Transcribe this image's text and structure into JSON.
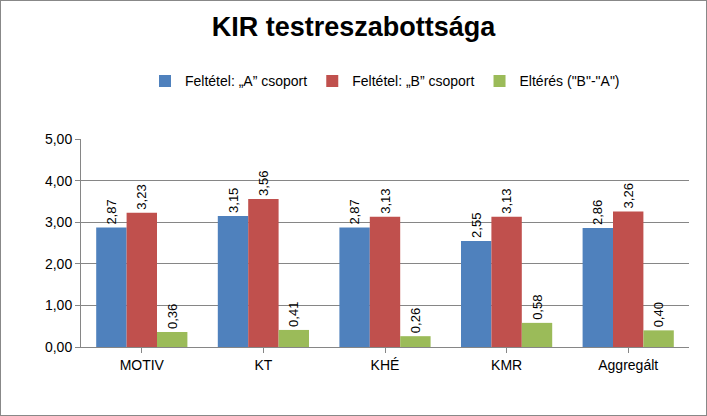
{
  "chart_data": {
    "type": "bar",
    "title": "KIR testreszabottsága",
    "categories": [
      "MOTIV",
      "KT",
      "KHÉ",
      "KMR",
      "Aggregált"
    ],
    "series": [
      {
        "name": "Feltétel: „A” csoport",
        "color": "#4f81bd",
        "values": [
          2.87,
          3.15,
          2.87,
          2.55,
          2.86
        ],
        "value_labels": [
          "2,87",
          "3,15",
          "2,87",
          "2,55",
          "2,86"
        ]
      },
      {
        "name": "Feltétel: „B” csoport",
        "color": "#c0504d",
        "values": [
          3.23,
          3.56,
          3.13,
          3.13,
          3.26
        ],
        "value_labels": [
          "3,23",
          "3,56",
          "3,13",
          "3,13",
          "3,26"
        ]
      },
      {
        "name": "Eltérés (\"B\"-\"A\")",
        "color": "#9bbb59",
        "values": [
          0.36,
          0.41,
          0.26,
          0.58,
          0.4
        ],
        "value_labels": [
          "0,36",
          "0,41",
          "0,26",
          "0,58",
          "0,40"
        ]
      }
    ],
    "ylim": [
      0,
      5
    ],
    "yticks": [
      {
        "value": 0,
        "label": "0,00"
      },
      {
        "value": 1,
        "label": "1,00"
      },
      {
        "value": 2,
        "label": "2,00"
      },
      {
        "value": 3,
        "label": "3,00"
      },
      {
        "value": 4,
        "label": "4,00"
      },
      {
        "value": 5,
        "label": "5,00"
      }
    ],
    "grid": true,
    "legend": "top",
    "data_labels": true
  }
}
